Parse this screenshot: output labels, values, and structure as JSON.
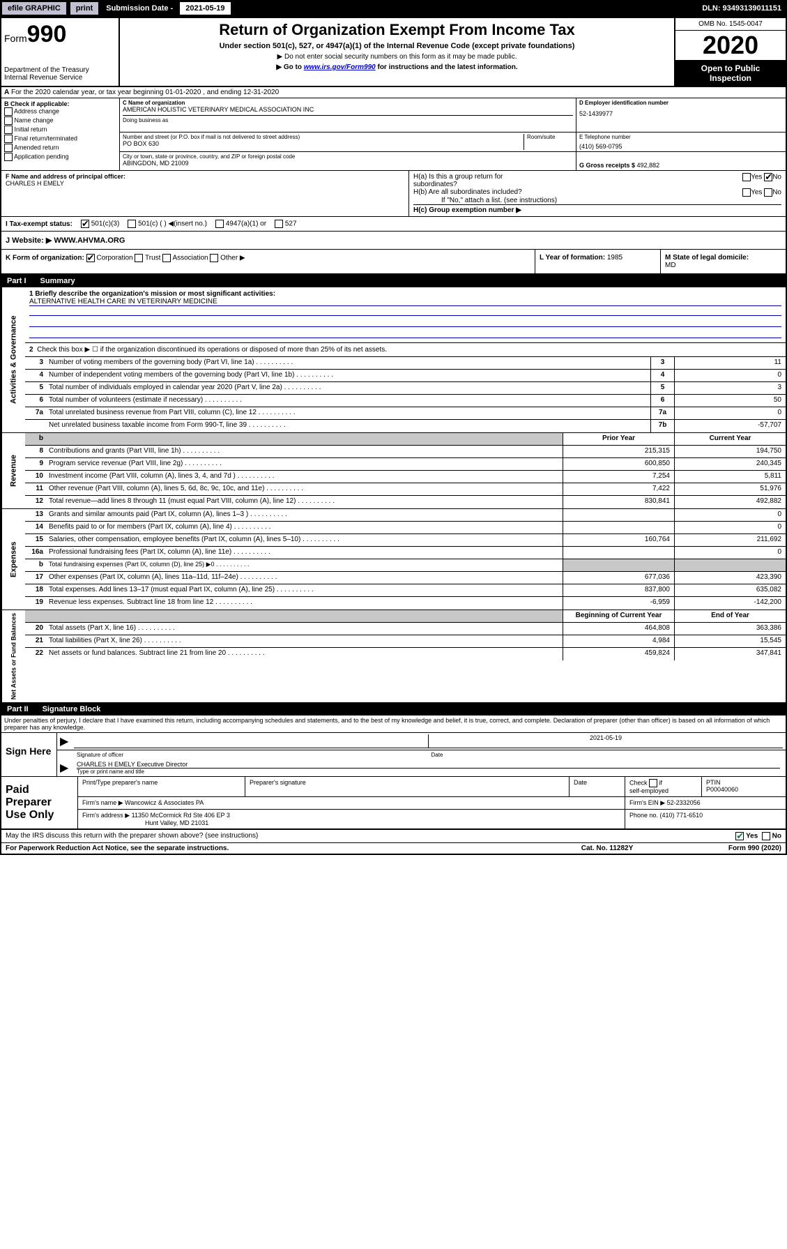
{
  "topbar": {
    "efile": "efile GRAPHIC",
    "print": "print",
    "sub_label": "Submission Date - ",
    "sub_date": "2021-05-19",
    "dln": "DLN: 93493139011151"
  },
  "header": {
    "form_word": "Form",
    "form_num": "990",
    "dept": "Department of the Treasury",
    "irs": "Internal Revenue Service",
    "title": "Return of Organization Exempt From Income Tax",
    "subtitle": "Under section 501(c), 527, or 4947(a)(1) of the Internal Revenue Code (except private foundations)",
    "note1": "▶ Do not enter social security numbers on this form as it may be made public.",
    "note2_pre": "▶ Go to ",
    "note2_link": "www.irs.gov/Form990",
    "note2_post": " for instructions and the latest information.",
    "omb": "OMB No. 1545-0047",
    "year": "2020",
    "inspect1": "Open to Public",
    "inspect2": "Inspection"
  },
  "row_a": "For the 2020 calendar year, or tax year beginning 01-01-2020    , and ending 12-31-2020",
  "col_b": {
    "hdr": "B Check if applicable:",
    "opts": [
      "Address change",
      "Name change",
      "Initial return",
      "Final return/terminated",
      "Amended return",
      "Application pending"
    ]
  },
  "block_c": {
    "name_lbl": "C Name of organization",
    "name": "AMERICAN HOLISTIC VETERINARY MEDICAL ASSOCIATION INC",
    "dba_lbl": "Doing business as",
    "addr_lbl": "Number and street (or P.O. box if mail is not delivered to street address)",
    "room_lbl": "Room/suite",
    "addr": "PO BOX 630",
    "city_lbl": "City or town, state or province, country, and ZIP or foreign postal code",
    "city": "ABINGDON, MD  21009"
  },
  "block_d": {
    "ein_lbl": "D Employer identification number",
    "ein": "52-1439977",
    "tel_lbl": "E Telephone number",
    "tel": "(410) 569-0795",
    "gross_lbl": "G Gross receipts $ ",
    "gross": "492,882"
  },
  "block_f": {
    "lbl": "F Name and address of principal officer:",
    "name": "CHARLES H EMELY"
  },
  "block_h": {
    "ha": "H(a)  Is this a group return for",
    "ha2": "         subordinates?",
    "hb": "H(b)  Are all subordinates included?",
    "hb_note": "If \"No,\" attach a list. (see instructions)",
    "hc": "H(c)  Group exemption number ▶",
    "yes": "Yes",
    "no": "No"
  },
  "row_i": {
    "lbl": "I   Tax-exempt status:",
    "o1": "501(c)(3)",
    "o2": "501(c) (  ) ◀(insert no.)",
    "o3": "4947(a)(1) or",
    "o4": "527"
  },
  "row_j": {
    "lbl": "J   Website: ▶",
    "val": "  WWW.AHVMA.ORG"
  },
  "row_k": {
    "k": "K Form of organization:",
    "opts": [
      "Corporation",
      "Trust",
      "Association",
      "Other ▶"
    ],
    "l_lbl": "L Year of formation: ",
    "l_val": "1985",
    "m_lbl": "M State of legal domicile:",
    "m_val": "MD"
  },
  "part1": {
    "num": "Part I",
    "title": "Summary"
  },
  "summary": {
    "l1_lbl": "1  Briefly describe the organization's mission or most significant activities:",
    "l1_val": "ALTERNATIVE HEALTH CARE IN VETERINARY MEDICINE",
    "l2": "Check this box ▶ ☐  if the organization discontinued its operations or disposed of more than 25% of its net assets.",
    "rows_gov": [
      {
        "n": "3",
        "t": "Number of voting members of the governing body (Part VI, line 1a)",
        "b": "3",
        "v": "11"
      },
      {
        "n": "4",
        "t": "Number of independent voting members of the governing body (Part VI, line 1b)",
        "b": "4",
        "v": "0"
      },
      {
        "n": "5",
        "t": "Total number of individuals employed in calendar year 2020 (Part V, line 2a)",
        "b": "5",
        "v": "3"
      },
      {
        "n": "6",
        "t": "Total number of volunteers (estimate if necessary)",
        "b": "6",
        "v": "50"
      },
      {
        "n": "7a",
        "t": "Total unrelated business revenue from Part VIII, column (C), line 12",
        "b": "7a",
        "v": "0"
      },
      {
        "n": "",
        "t": "Net unrelated business taxable income from Form 990-T, line 39",
        "b": "7b",
        "v": "-57,707"
      }
    ],
    "col_prior": "Prior Year",
    "col_curr": "Current Year",
    "rows_rev": [
      {
        "n": "8",
        "t": "Contributions and grants (Part VIII, line 1h)",
        "p": "215,315",
        "c": "194,750"
      },
      {
        "n": "9",
        "t": "Program service revenue (Part VIII, line 2g)",
        "p": "600,850",
        "c": "240,345"
      },
      {
        "n": "10",
        "t": "Investment income (Part VIII, column (A), lines 3, 4, and 7d )",
        "p": "7,254",
        "c": "5,811"
      },
      {
        "n": "11",
        "t": "Other revenue (Part VIII, column (A), lines 5, 6d, 8c, 9c, 10c, and 11e)",
        "p": "7,422",
        "c": "51,976"
      },
      {
        "n": "12",
        "t": "Total revenue—add lines 8 through 11 (must equal Part VIII, column (A), line 12)",
        "p": "830,841",
        "c": "492,882"
      }
    ],
    "rows_exp": [
      {
        "n": "13",
        "t": "Grants and similar amounts paid (Part IX, column (A), lines 1–3 )",
        "p": "",
        "c": "0"
      },
      {
        "n": "14",
        "t": "Benefits paid to or for members (Part IX, column (A), line 4)",
        "p": "",
        "c": "0"
      },
      {
        "n": "15",
        "t": "Salaries, other compensation, employee benefits (Part IX, column (A), lines 5–10)",
        "p": "160,764",
        "c": "211,692"
      },
      {
        "n": "16a",
        "t": "Professional fundraising fees (Part IX, column (A), line 11e)",
        "p": "",
        "c": "0"
      },
      {
        "n": "b",
        "t": "Total fundraising expenses (Part IX, column (D), line 25) ▶0",
        "p": "",
        "c": "",
        "shadeP": true,
        "shadeC": true,
        "small": true
      },
      {
        "n": "17",
        "t": "Other expenses (Part IX, column (A), lines 11a–11d, 11f–24e)",
        "p": "677,036",
        "c": "423,390"
      },
      {
        "n": "18",
        "t": "Total expenses. Add lines 13–17 (must equal Part IX, column (A), line 25)",
        "p": "837,800",
        "c": "635,082"
      },
      {
        "n": "19",
        "t": "Revenue less expenses. Subtract line 18 from line 12",
        "p": "-6,959",
        "c": "-142,200"
      }
    ],
    "col_beg": "Beginning of Current Year",
    "col_end": "End of Year",
    "rows_na": [
      {
        "n": "20",
        "t": "Total assets (Part X, line 16)",
        "p": "464,808",
        "c": "363,386"
      },
      {
        "n": "21",
        "t": "Total liabilities (Part X, line 26)",
        "p": "4,984",
        "c": "15,545"
      },
      {
        "n": "22",
        "t": "Net assets or fund balances. Subtract line 21 from line 20",
        "p": "459,824",
        "c": "347,841"
      }
    ]
  },
  "sect_labels": {
    "gov": "Activities & Governance",
    "rev": "Revenue",
    "exp": "Expenses",
    "na": "Net Assets or Fund Balances"
  },
  "part2": {
    "num": "Part II",
    "title": "Signature Block"
  },
  "perjury": "Under penalties of perjury, I declare that I have examined this return, including accompanying schedules and statements, and to the best of my knowledge and belief, it is true, correct, and complete. Declaration of preparer (other than officer) is based on all information of which preparer has any knowledge.",
  "sign": {
    "left": "Sign Here",
    "sig_lbl": "Signature of officer",
    "date_lbl": "Date",
    "date_val": "2021-05-19",
    "name_val": "CHARLES H EMELY  Executive Director",
    "name_lbl": "Type or print name and title"
  },
  "paid": {
    "left": "Paid Preparer Use Only",
    "h1": "Print/Type preparer's name",
    "h2": "Preparer's signature",
    "h3": "Date",
    "h4a": "Check",
    "h4b": "if",
    "h4c": "self-employed",
    "h5": "PTIN",
    "ptin": "P00040060",
    "firm_lbl": "Firm's name    ▶ ",
    "firm": "Wancowicz & Associates PA",
    "ein_lbl": "Firm's EIN ▶ ",
    "ein": "52-2332056",
    "addr_lbl": "Firm's address ▶ ",
    "addr1": "11350 McCormick Rd Ste 406 EP 3",
    "addr2": "Hunt Valley, MD  21031",
    "ph_lbl": "Phone no. ",
    "ph": "(410) 771-6510"
  },
  "footer": {
    "discuss": "May the IRS discuss this return with the preparer shown above? (see instructions)",
    "yes": "Yes",
    "no": "No",
    "pra": "For Paperwork Reduction Act Notice, see the separate instructions.",
    "cat": "Cat. No. 11282Y",
    "form": "Form 990 (2020)"
  },
  "colors": {
    "link": "#0000cc",
    "shade": "#c8c8c8",
    "green": "#0a7a3a"
  }
}
